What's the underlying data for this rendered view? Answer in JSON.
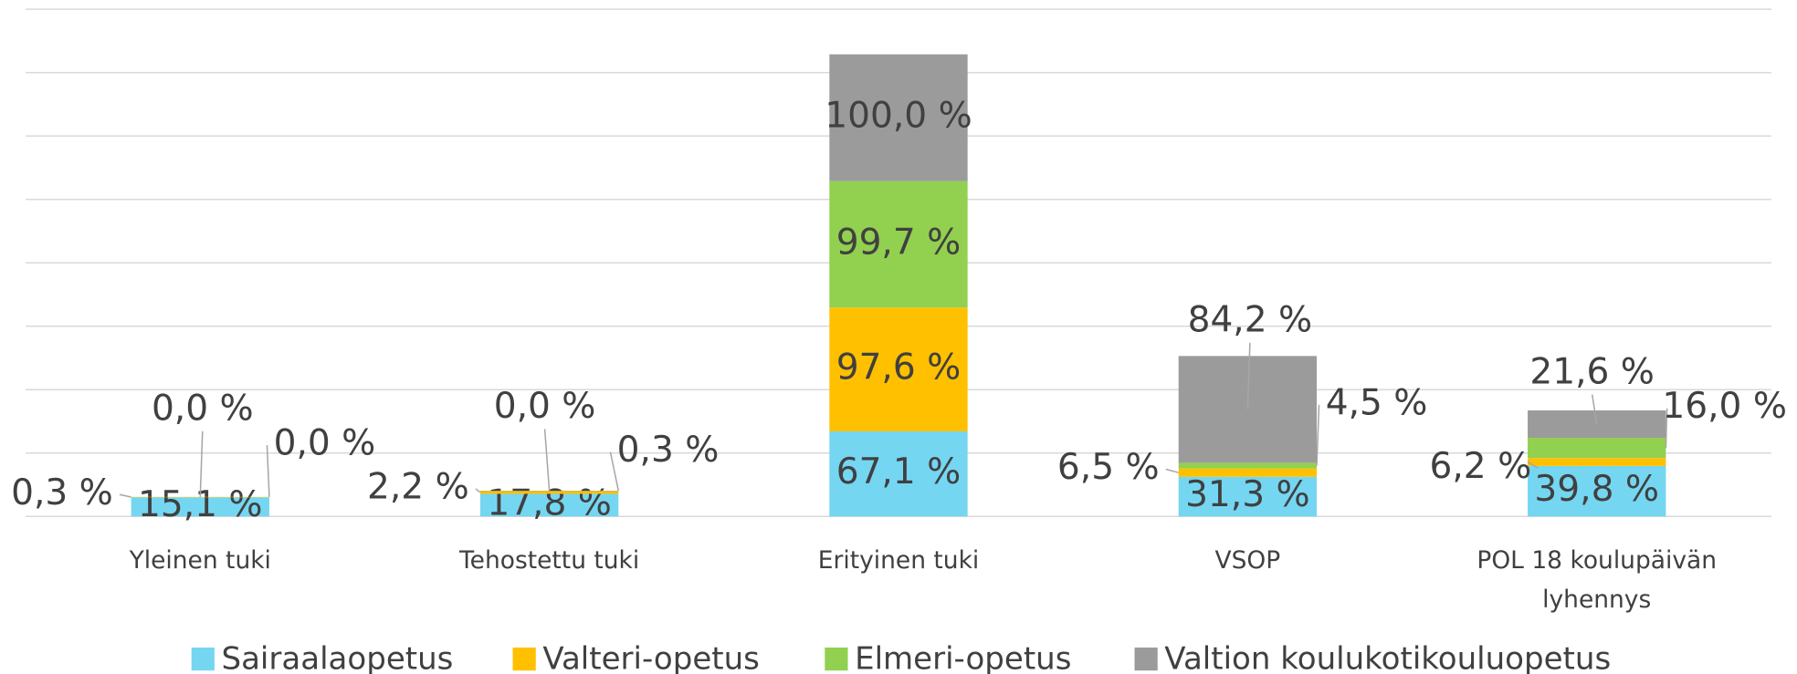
{
  "chart_data": {
    "type": "bar",
    "stacked": true,
    "categories": [
      "Yleinen tuki",
      "Tehostettu tuki",
      "Erityinen tuki",
      "VSOP",
      "POL 18 koulupäivän lyhennys"
    ],
    "series": [
      {
        "name": "Sairaalaopetus",
        "color": "#75d6f2",
        "values": [
          15.1,
          17.8,
          67.1,
          31.3,
          39.8
        ],
        "value_labels": [
          "15,1 %",
          "17,8 %",
          "67,1 %",
          "31,3 %",
          "39,8 %"
        ]
      },
      {
        "name": "Valteri-opetus",
        "color": "#ffc000",
        "values": [
          0.3,
          2.2,
          97.6,
          6.5,
          6.2
        ],
        "value_labels": [
          "0,3 %",
          "2,2 %",
          "97,6 %",
          "6,5 %",
          "6,2 %"
        ]
      },
      {
        "name": "Elmeri-opetus",
        "color": "#92d050",
        "values": [
          0.0,
          0.0,
          99.7,
          4.5,
          16.0
        ],
        "value_labels": [
          "0,0 %",
          "0,0 %",
          "99,7 %",
          "4,5 %",
          "16,0 %"
        ]
      },
      {
        "name": "Valtion koulukotikouluopetus",
        "color": "#9b9b9b",
        "values": [
          0.0,
          0.3,
          100.0,
          84.2,
          21.6
        ],
        "value_labels": [
          "0,0 %",
          "0,3 %",
          "100,0 %",
          "84,2 %",
          "21,6 %"
        ]
      }
    ],
    "ylim": [
      0,
      400
    ],
    "yticks": [
      0,
      50,
      100,
      150,
      200,
      250,
      300,
      350,
      400
    ],
    "grid": true,
    "legend": "bottom"
  }
}
